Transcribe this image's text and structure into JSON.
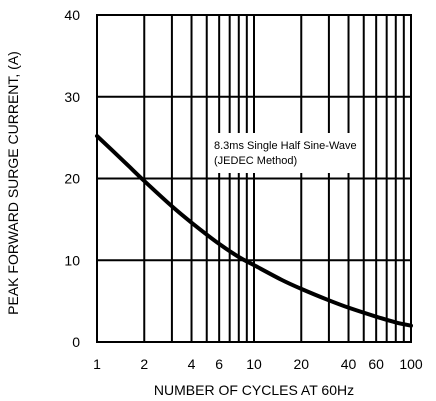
{
  "chart_data": {
    "type": "line",
    "xlabel": "NUMBER OF CYCLES AT 60Hz",
    "ylabel": "PEAK FORWARD SURGE CURRENT, (A)",
    "x_scale": "log",
    "xlim": [
      1,
      100
    ],
    "ylim": [
      0,
      40
    ],
    "x_ticks": [
      1,
      2,
      4,
      6,
      10,
      20,
      40,
      60,
      100
    ],
    "x_tick_labels": [
      "1",
      "2",
      "4",
      "6",
      "10",
      "20",
      "40",
      "60",
      "100"
    ],
    "y_ticks": [
      0,
      10,
      20,
      30,
      40
    ],
    "y_tick_labels": [
      "0",
      "10",
      "20",
      "30",
      "40"
    ],
    "grid": true,
    "annotation": [
      "8.3ms Single Half Sine-Wave",
      "(JEDEC Method)"
    ],
    "series": [
      {
        "x": [
          1,
          1.5,
          2,
          3,
          4,
          6,
          8,
          10,
          15,
          20,
          30,
          40,
          60,
          80,
          100
        ],
        "y": [
          25.2,
          22.0,
          19.7,
          16.6,
          14.6,
          12.0,
          10.4,
          9.4,
          7.6,
          6.5,
          5.1,
          4.2,
          3.1,
          2.4,
          2.0
        ]
      }
    ]
  }
}
